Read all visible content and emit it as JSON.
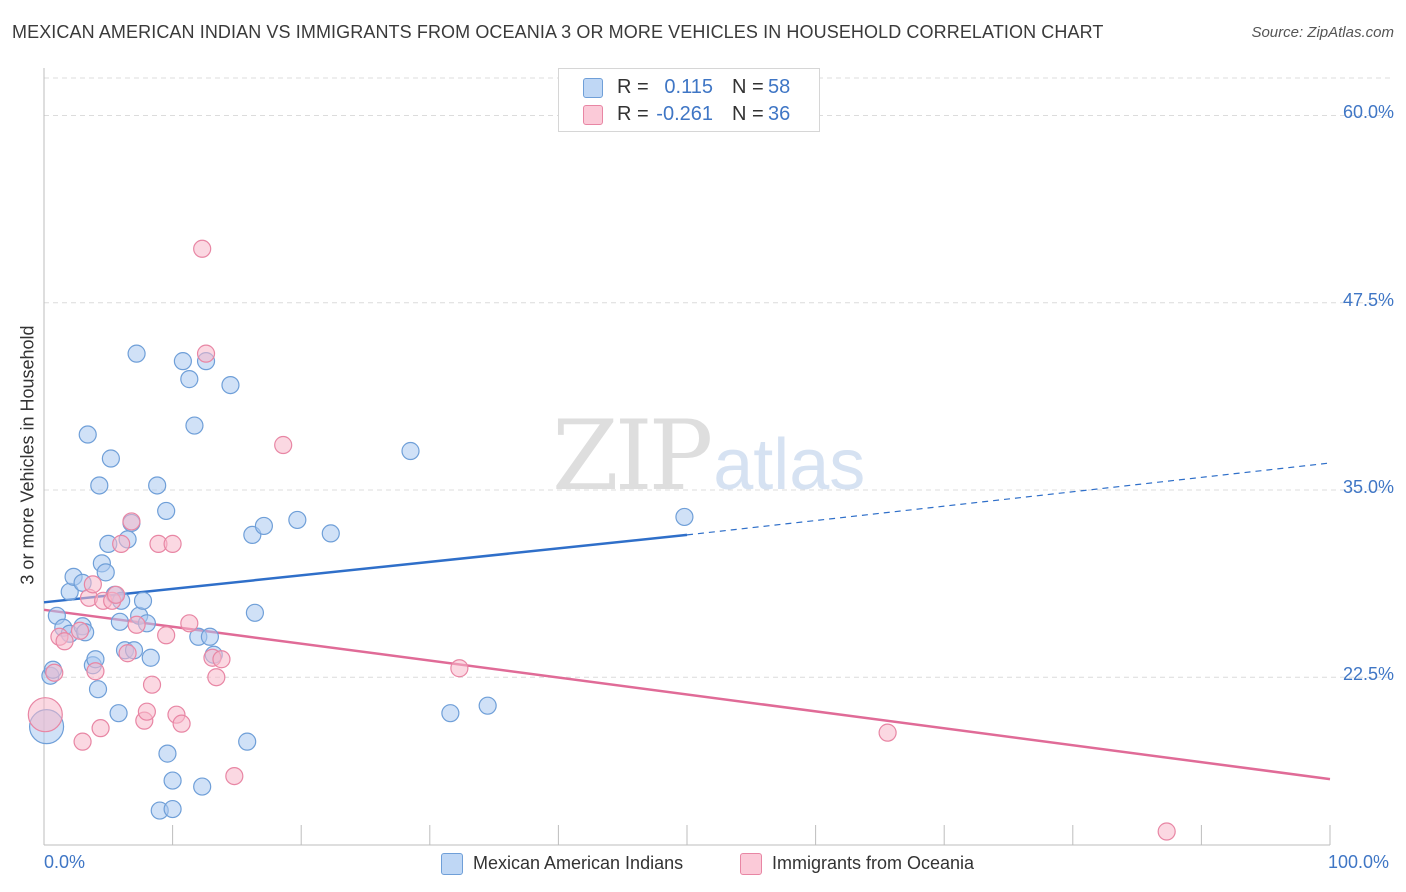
{
  "title": "MEXICAN AMERICAN INDIAN VS IMMIGRANTS FROM OCEANIA 3 OR MORE VEHICLES IN HOUSEHOLD CORRELATION CHART",
  "source": "Source: ZipAtlas.com",
  "watermark": {
    "zip": "ZIP",
    "atlas": "atlas"
  },
  "stats": [
    {
      "r_label": "R =",
      "r_value": "0.115",
      "n_label": "N =",
      "n_value": "58",
      "color": "#a9c8f0",
      "border": "#6f9fd8"
    },
    {
      "r_label": "R =",
      "r_value": "-0.261",
      "n_label": "N =",
      "n_value": "36",
      "color": "#f7b8cb",
      "border": "#e886a4"
    }
  ],
  "legend": [
    {
      "label": "Mexican American Indians",
      "color": "#a9c8f0",
      "border": "#6f9fd8"
    },
    {
      "label": "Immigrants from Oceania",
      "color": "#f7b8cb",
      "border": "#e886a4"
    }
  ],
  "chart_data": {
    "type": "scatter",
    "title": "MEXICAN AMERICAN INDIAN VS IMMIGRANTS FROM OCEANIA 3 OR MORE VEHICLES IN HOUSEHOLD CORRELATION CHART",
    "xlabel": "",
    "ylabel": "3 or more Vehicles in Household",
    "xlim": [
      0,
      100
    ],
    "ylim": [
      11.3,
      62.5
    ],
    "x_tick_labels": [
      "0.0%",
      "100.0%"
    ],
    "y_ticks": [
      22.5,
      35.0,
      47.5,
      60.0
    ],
    "y_tick_labels": [
      "22.5%",
      "35.0%",
      "47.5%",
      "60.0%"
    ],
    "grid": true,
    "series": [
      {
        "name": "Mexican American Indians",
        "color": "#a9c8f0",
        "edge": "#6f9fd8",
        "line_color": "#2f6fc9",
        "trend": {
          "x0": 0,
          "y0": 27.5,
          "x1": 50,
          "y1": 32.0,
          "x_dashed_end": 100,
          "y_dashed_end": 36.8
        },
        "points": [
          {
            "x": 0.2,
            "y": 19.2,
            "s": 2
          },
          {
            "x": 0.5,
            "y": 22.6,
            "s": 1
          },
          {
            "x": 0.7,
            "y": 23.0,
            "s": 1
          },
          {
            "x": 1.0,
            "y": 26.6,
            "s": 1
          },
          {
            "x": 1.5,
            "y": 25.8,
            "s": 1
          },
          {
            "x": 2.0,
            "y": 25.4,
            "s": 1
          },
          {
            "x": 2.0,
            "y": 28.2,
            "s": 1
          },
          {
            "x": 2.3,
            "y": 29.2,
            "s": 1
          },
          {
            "x": 3.0,
            "y": 25.9,
            "s": 1
          },
          {
            "x": 3.2,
            "y": 25.5,
            "s": 1
          },
          {
            "x": 3.0,
            "y": 28.8,
            "s": 1
          },
          {
            "x": 3.4,
            "y": 38.7,
            "s": 1
          },
          {
            "x": 3.8,
            "y": 23.3,
            "s": 1
          },
          {
            "x": 4.0,
            "y": 23.7,
            "s": 1
          },
          {
            "x": 4.2,
            "y": 21.7,
            "s": 1
          },
          {
            "x": 4.3,
            "y": 35.3,
            "s": 1
          },
          {
            "x": 4.5,
            "y": 30.1,
            "s": 1
          },
          {
            "x": 4.8,
            "y": 29.5,
            "s": 1
          },
          {
            "x": 5.0,
            "y": 31.4,
            "s": 1
          },
          {
            "x": 5.2,
            "y": 37.1,
            "s": 1
          },
          {
            "x": 5.5,
            "y": 28.0,
            "s": 1
          },
          {
            "x": 5.8,
            "y": 20.1,
            "s": 1
          },
          {
            "x": 5.9,
            "y": 26.2,
            "s": 1
          },
          {
            "x": 6.0,
            "y": 27.6,
            "s": 1
          },
          {
            "x": 6.3,
            "y": 24.3,
            "s": 1
          },
          {
            "x": 6.5,
            "y": 31.7,
            "s": 1
          },
          {
            "x": 6.8,
            "y": 32.8,
            "s": 1
          },
          {
            "x": 7.0,
            "y": 24.3,
            "s": 1
          },
          {
            "x": 7.2,
            "y": 44.1,
            "s": 1
          },
          {
            "x": 7.4,
            "y": 26.6,
            "s": 1
          },
          {
            "x": 7.7,
            "y": 27.6,
            "s": 1
          },
          {
            "x": 8.0,
            "y": 26.1,
            "s": 1
          },
          {
            "x": 8.3,
            "y": 23.8,
            "s": 1
          },
          {
            "x": 8.8,
            "y": 35.3,
            "s": 1
          },
          {
            "x": 9.0,
            "y": 13.6,
            "s": 1
          },
          {
            "x": 9.5,
            "y": 33.6,
            "s": 1
          },
          {
            "x": 9.6,
            "y": 17.4,
            "s": 1
          },
          {
            "x": 10.0,
            "y": 13.7,
            "s": 1
          },
          {
            "x": 10.0,
            "y": 15.6,
            "s": 1
          },
          {
            "x": 10.8,
            "y": 43.6,
            "s": 1
          },
          {
            "x": 11.3,
            "y": 42.4,
            "s": 1
          },
          {
            "x": 11.7,
            "y": 39.3,
            "s": 1
          },
          {
            "x": 12.0,
            "y": 25.2,
            "s": 1
          },
          {
            "x": 12.3,
            "y": 15.2,
            "s": 1
          },
          {
            "x": 12.6,
            "y": 43.6,
            "s": 1
          },
          {
            "x": 12.9,
            "y": 25.2,
            "s": 1
          },
          {
            "x": 13.2,
            "y": 24.0,
            "s": 1
          },
          {
            "x": 14.5,
            "y": 42.0,
            "s": 1
          },
          {
            "x": 15.8,
            "y": 18.2,
            "s": 1
          },
          {
            "x": 16.2,
            "y": 32.0,
            "s": 1
          },
          {
            "x": 16.4,
            "y": 26.8,
            "s": 1
          },
          {
            "x": 17.1,
            "y": 32.6,
            "s": 1
          },
          {
            "x": 19.7,
            "y": 33.0,
            "s": 1
          },
          {
            "x": 22.3,
            "y": 32.1,
            "s": 1
          },
          {
            "x": 28.5,
            "y": 37.6,
            "s": 1
          },
          {
            "x": 31.6,
            "y": 20.1,
            "s": 1
          },
          {
            "x": 34.5,
            "y": 20.6,
            "s": 1
          },
          {
            "x": 49.8,
            "y": 33.2,
            "s": 1
          }
        ]
      },
      {
        "name": "Immigrants from Oceania",
        "color": "#f7b8cb",
        "edge": "#e886a4",
        "line_color": "#e06b97",
        "trend": {
          "x0": 0,
          "y0": 27.0,
          "x1": 100,
          "y1": 15.7
        },
        "points": [
          {
            "x": 0.1,
            "y": 20.0,
            "s": 2
          },
          {
            "x": 0.8,
            "y": 22.8,
            "s": 1
          },
          {
            "x": 1.2,
            "y": 25.2,
            "s": 1
          },
          {
            "x": 1.6,
            "y": 24.9,
            "s": 1
          },
          {
            "x": 2.8,
            "y": 25.6,
            "s": 1
          },
          {
            "x": 3.0,
            "y": 18.2,
            "s": 1
          },
          {
            "x": 3.5,
            "y": 27.8,
            "s": 1
          },
          {
            "x": 3.8,
            "y": 28.7,
            "s": 1
          },
          {
            "x": 4.0,
            "y": 22.9,
            "s": 1
          },
          {
            "x": 4.4,
            "y": 19.1,
            "s": 1
          },
          {
            "x": 4.6,
            "y": 27.6,
            "s": 1
          },
          {
            "x": 5.3,
            "y": 27.6,
            "s": 1
          },
          {
            "x": 5.6,
            "y": 28.0,
            "s": 1
          },
          {
            "x": 6.0,
            "y": 31.4,
            "s": 1
          },
          {
            "x": 6.5,
            "y": 24.1,
            "s": 1
          },
          {
            "x": 6.8,
            "y": 32.9,
            "s": 1
          },
          {
            "x": 7.2,
            "y": 26.0,
            "s": 1
          },
          {
            "x": 7.8,
            "y": 19.6,
            "s": 1
          },
          {
            "x": 8.0,
            "y": 20.2,
            "s": 1
          },
          {
            "x": 8.4,
            "y": 22.0,
            "s": 1
          },
          {
            "x": 8.9,
            "y": 31.4,
            "s": 1
          },
          {
            "x": 9.5,
            "y": 25.3,
            "s": 1
          },
          {
            "x": 10.0,
            "y": 31.4,
            "s": 1
          },
          {
            "x": 10.3,
            "y": 20.0,
            "s": 1
          },
          {
            "x": 10.7,
            "y": 19.4,
            "s": 1
          },
          {
            "x": 11.3,
            "y": 26.1,
            "s": 1
          },
          {
            "x": 12.3,
            "y": 51.1,
            "s": 1
          },
          {
            "x": 12.6,
            "y": 44.1,
            "s": 1
          },
          {
            "x": 13.1,
            "y": 23.8,
            "s": 1
          },
          {
            "x": 13.4,
            "y": 22.5,
            "s": 1
          },
          {
            "x": 13.8,
            "y": 23.7,
            "s": 1
          },
          {
            "x": 14.8,
            "y": 15.9,
            "s": 1
          },
          {
            "x": 18.6,
            "y": 38.0,
            "s": 1
          },
          {
            "x": 32.3,
            "y": 23.1,
            "s": 1
          },
          {
            "x": 65.6,
            "y": 18.8,
            "s": 1
          },
          {
            "x": 87.3,
            "y": 12.2,
            "s": 1
          }
        ]
      }
    ]
  }
}
